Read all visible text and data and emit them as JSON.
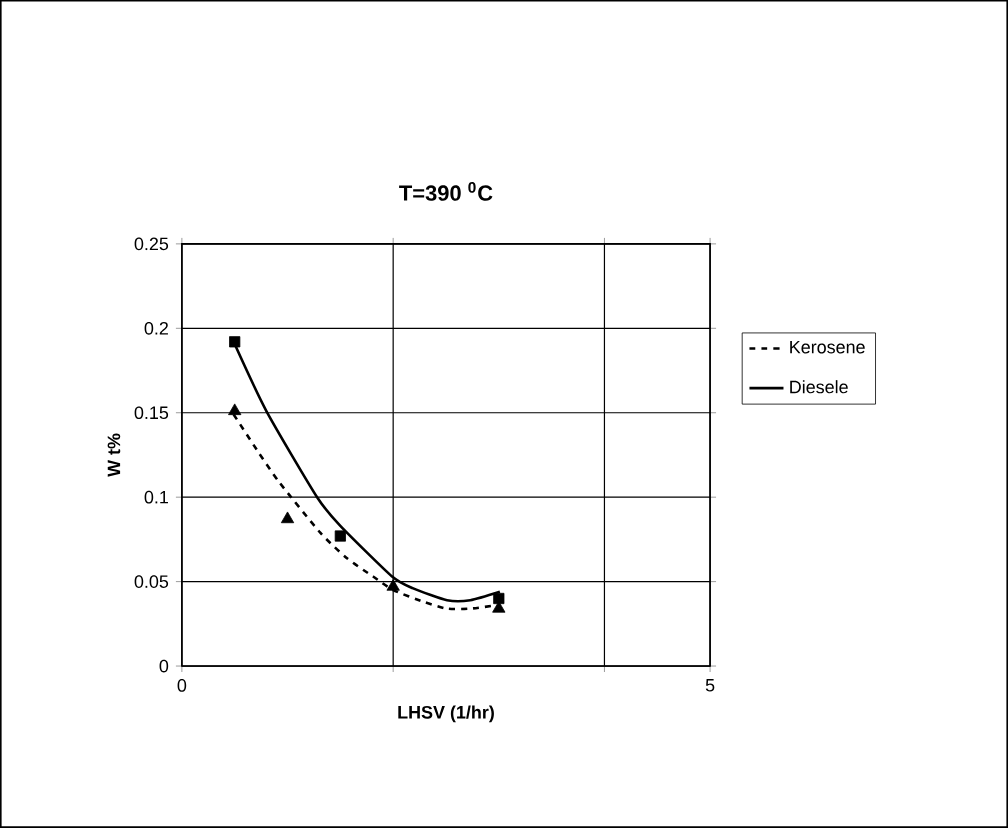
{
  "chart_data": {
    "type": "line",
    "title": "T=390 $^{0}$C",
    "xlabel": "LHSV (1/hr)",
    "ylabel": "W t%",
    "xlim": [
      0,
      5
    ],
    "ylim": [
      0,
      0.25
    ],
    "xticks": [
      0,
      {
        "value": 2,
        "label": null
      },
      {
        "value": 4,
        "label": null
      },
      5
    ],
    "yticks": [
      0,
      0.05,
      0.1,
      0.15,
      0.2,
      0.25
    ],
    "grid": true,
    "legend": "right",
    "series": [
      {
        "type": "scatter",
        "color": "#000000",
        "marker": "triangle",
        "x": [
          0.5,
          1,
          2,
          3
        ],
        "values": [
          0.151,
          0.087,
          0.047,
          0.034
        ]
      },
      {
        "type": "scatter",
        "color": "#000000",
        "marker": "square",
        "x": [
          0.5,
          1.5,
          3
        ],
        "values": [
          0.192,
          0.077,
          0.04
        ]
      },
      {
        "type": "line",
        "name": "Kerosene",
        "color": "#000000",
        "line_style": "dotted",
        "x": [
          0.49,
          0.71,
          0.92,
          1.31,
          1.56,
          1.81,
          2.0,
          2.29,
          2.51,
          2.73,
          2.98
        ],
        "values": [
          0.149,
          0.128,
          0.109,
          0.079,
          0.064,
          0.053,
          0.045,
          0.038,
          0.034,
          0.034,
          0.036
        ]
      },
      {
        "type": "line",
        "name": "Diesele",
        "color": "#000000",
        "line_style": "solid",
        "x": [
          0.49,
          0.8,
          1.28,
          1.5,
          1.99,
          2.19,
          2.51,
          2.73,
          3.01
        ],
        "values": [
          0.192,
          0.151,
          0.1,
          0.083,
          0.053,
          0.046,
          0.039,
          0.039,
          0.044
        ]
      }
    ]
  }
}
